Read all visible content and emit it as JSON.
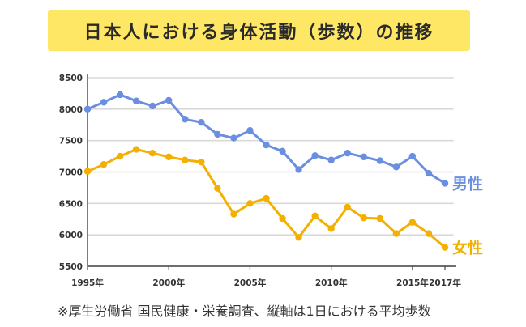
{
  "title": "日本人における身体活動（歩数）の推移",
  "footnote": "※厚生労働省 国民健康・栄養調査、縦軸は1日における平均歩数",
  "chart_data": {
    "type": "line",
    "title": "日本人における身体活動（歩数）の推移",
    "xlabel": "",
    "ylabel": "",
    "x": [
      1995,
      1996,
      1997,
      1998,
      1999,
      2000,
      2001,
      2002,
      2003,
      2004,
      2005,
      2006,
      2007,
      2008,
      2009,
      2010,
      2011,
      2012,
      2013,
      2014,
      2015,
      2016,
      2017
    ],
    "xlim": [
      1995,
      2017
    ],
    "x_tick_labels": [
      {
        "x": 1995,
        "label": "1995年"
      },
      {
        "x": 2000,
        "label": "2000年"
      },
      {
        "x": 2005,
        "label": "2005年"
      },
      {
        "x": 2010,
        "label": "2010年"
      },
      {
        "x": 2015,
        "label": "2015年"
      },
      {
        "x": 2017,
        "label": "2017年"
      }
    ],
    "ylim": [
      5500,
      8500
    ],
    "yticks": [
      5500,
      6000,
      6500,
      7000,
      7500,
      8000,
      8500
    ],
    "grid": true,
    "series": [
      {
        "name": "男性",
        "color": "#6a8fe0",
        "values": [
          8000,
          8110,
          8230,
          8130,
          8050,
          8140,
          7840,
          7790,
          7600,
          7540,
          7660,
          7430,
          7330,
          7040,
          7260,
          7190,
          7300,
          7240,
          7180,
          7080,
          7250,
          6980,
          6820
        ]
      },
      {
        "name": "女性",
        "color": "#f4b000",
        "values": [
          7010,
          7120,
          7250,
          7360,
          7300,
          7240,
          7190,
          7160,
          6740,
          6330,
          6500,
          6580,
          6260,
          5960,
          6300,
          6100,
          6440,
          6270,
          6260,
          6020,
          6200,
          6020,
          5800
        ]
      }
    ]
  }
}
